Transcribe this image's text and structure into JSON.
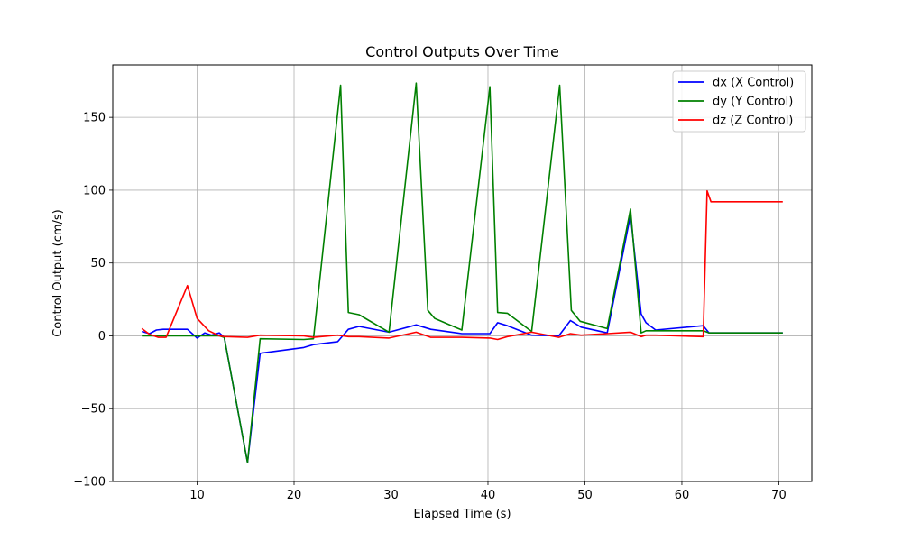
{
  "chart_data": {
    "type": "line",
    "title": "Control Outputs Over Time",
    "xlabel": "Elapsed Time (s)",
    "ylabel": "Control Output (cm/s)",
    "xlim": [
      1.3,
      73.4
    ],
    "ylim": [
      -100,
      186
    ],
    "xticks": [
      10,
      20,
      30,
      40,
      50,
      60,
      70
    ],
    "yticks": [
      -100,
      -50,
      0,
      50,
      100,
      150
    ],
    "grid": true,
    "legend_position": "top-right",
    "series": [
      {
        "name": "dx (X Control)",
        "color": "#0000ff",
        "points": [
          [
            4.3,
            3
          ],
          [
            5.1,
            1.5
          ],
          [
            5.8,
            4
          ],
          [
            6.5,
            4.5
          ],
          [
            7.5,
            4.5
          ],
          [
            8.3,
            4.5
          ],
          [
            9.0,
            4.5
          ],
          [
            10.0,
            -1.5
          ],
          [
            10.8,
            2
          ],
          [
            11.5,
            0.5
          ],
          [
            12.3,
            2
          ],
          [
            12.8,
            -1
          ],
          [
            15.2,
            -87
          ],
          [
            16.5,
            -12
          ],
          [
            21.0,
            -8
          ],
          [
            22.0,
            -6
          ],
          [
            24.5,
            -4
          ],
          [
            25.6,
            4.5
          ],
          [
            26.7,
            6.5
          ],
          [
            29.8,
            2.5
          ],
          [
            32.6,
            7.5
          ],
          [
            34.1,
            4.5
          ],
          [
            37.3,
            1.5
          ],
          [
            40.2,
            1.5
          ],
          [
            41.0,
            9
          ],
          [
            42.0,
            7
          ],
          [
            44.5,
            0.5
          ],
          [
            47.3,
            0
          ],
          [
            48.5,
            10.5
          ],
          [
            49.6,
            6
          ],
          [
            52.3,
            2
          ],
          [
            54.7,
            83
          ],
          [
            55.8,
            15
          ],
          [
            56.3,
            9
          ],
          [
            57.3,
            4
          ],
          [
            62.2,
            7
          ],
          [
            62.8,
            2
          ],
          [
            70.4,
            2
          ]
        ]
      },
      {
        "name": "dy (Y Control)",
        "color": "#008000",
        "points": [
          [
            4.3,
            0
          ],
          [
            5.1,
            0
          ],
          [
            5.8,
            0
          ],
          [
            6.5,
            0
          ],
          [
            7.5,
            0
          ],
          [
            8.3,
            0
          ],
          [
            9.0,
            0
          ],
          [
            10.0,
            0
          ],
          [
            10.8,
            0
          ],
          [
            11.5,
            0
          ],
          [
            12.3,
            0
          ],
          [
            12.8,
            -1
          ],
          [
            15.2,
            -87
          ],
          [
            16.5,
            -2
          ],
          [
            21.0,
            -2.5
          ],
          [
            22.0,
            -2
          ],
          [
            24.8,
            172
          ],
          [
            25.6,
            16
          ],
          [
            26.7,
            14.5
          ],
          [
            29.8,
            2.5
          ],
          [
            32.6,
            173.5
          ],
          [
            33.8,
            17.5
          ],
          [
            34.5,
            12
          ],
          [
            37.3,
            4
          ],
          [
            40.2,
            171
          ],
          [
            41.0,
            16
          ],
          [
            42.0,
            15.5
          ],
          [
            44.5,
            3
          ],
          [
            47.4,
            172
          ],
          [
            48.6,
            17.5
          ],
          [
            49.5,
            10
          ],
          [
            52.3,
            5
          ],
          [
            54.7,
            87
          ],
          [
            55.8,
            2
          ],
          [
            56.3,
            3.5
          ],
          [
            57.3,
            3.5
          ],
          [
            62.2,
            3.5
          ],
          [
            62.8,
            2
          ],
          [
            70.4,
            2
          ]
        ]
      },
      {
        "name": "dz (Z Control)",
        "color": "#ff0000",
        "points": [
          [
            4.3,
            5
          ],
          [
            5.1,
            1
          ],
          [
            6.0,
            -1
          ],
          [
            6.8,
            -1
          ],
          [
            9.0,
            34.5
          ],
          [
            10.0,
            12
          ],
          [
            11.2,
            3.5
          ],
          [
            12.3,
            0
          ],
          [
            12.8,
            -0.5
          ],
          [
            15.2,
            -1
          ],
          [
            16.5,
            0.5
          ],
          [
            21.0,
            0
          ],
          [
            22.0,
            -1
          ],
          [
            24.5,
            0.5
          ],
          [
            25.6,
            -0.5
          ],
          [
            26.7,
            -0.5
          ],
          [
            29.8,
            -1.5
          ],
          [
            32.6,
            2.5
          ],
          [
            34.1,
            -1
          ],
          [
            37.3,
            -1
          ],
          [
            40.2,
            -1.5
          ],
          [
            41.0,
            -2.5
          ],
          [
            42.0,
            -0.5
          ],
          [
            44.5,
            2.5
          ],
          [
            47.3,
            -1
          ],
          [
            48.5,
            1.5
          ],
          [
            49.6,
            0.5
          ],
          [
            52.3,
            1.5
          ],
          [
            54.7,
            2.5
          ],
          [
            55.8,
            -0.5
          ],
          [
            56.3,
            0.5
          ],
          [
            57.3,
            0.5
          ],
          [
            62.2,
            -0.5
          ],
          [
            62.6,
            99.5
          ],
          [
            63.0,
            92
          ],
          [
            70.4,
            92
          ]
        ]
      }
    ]
  }
}
